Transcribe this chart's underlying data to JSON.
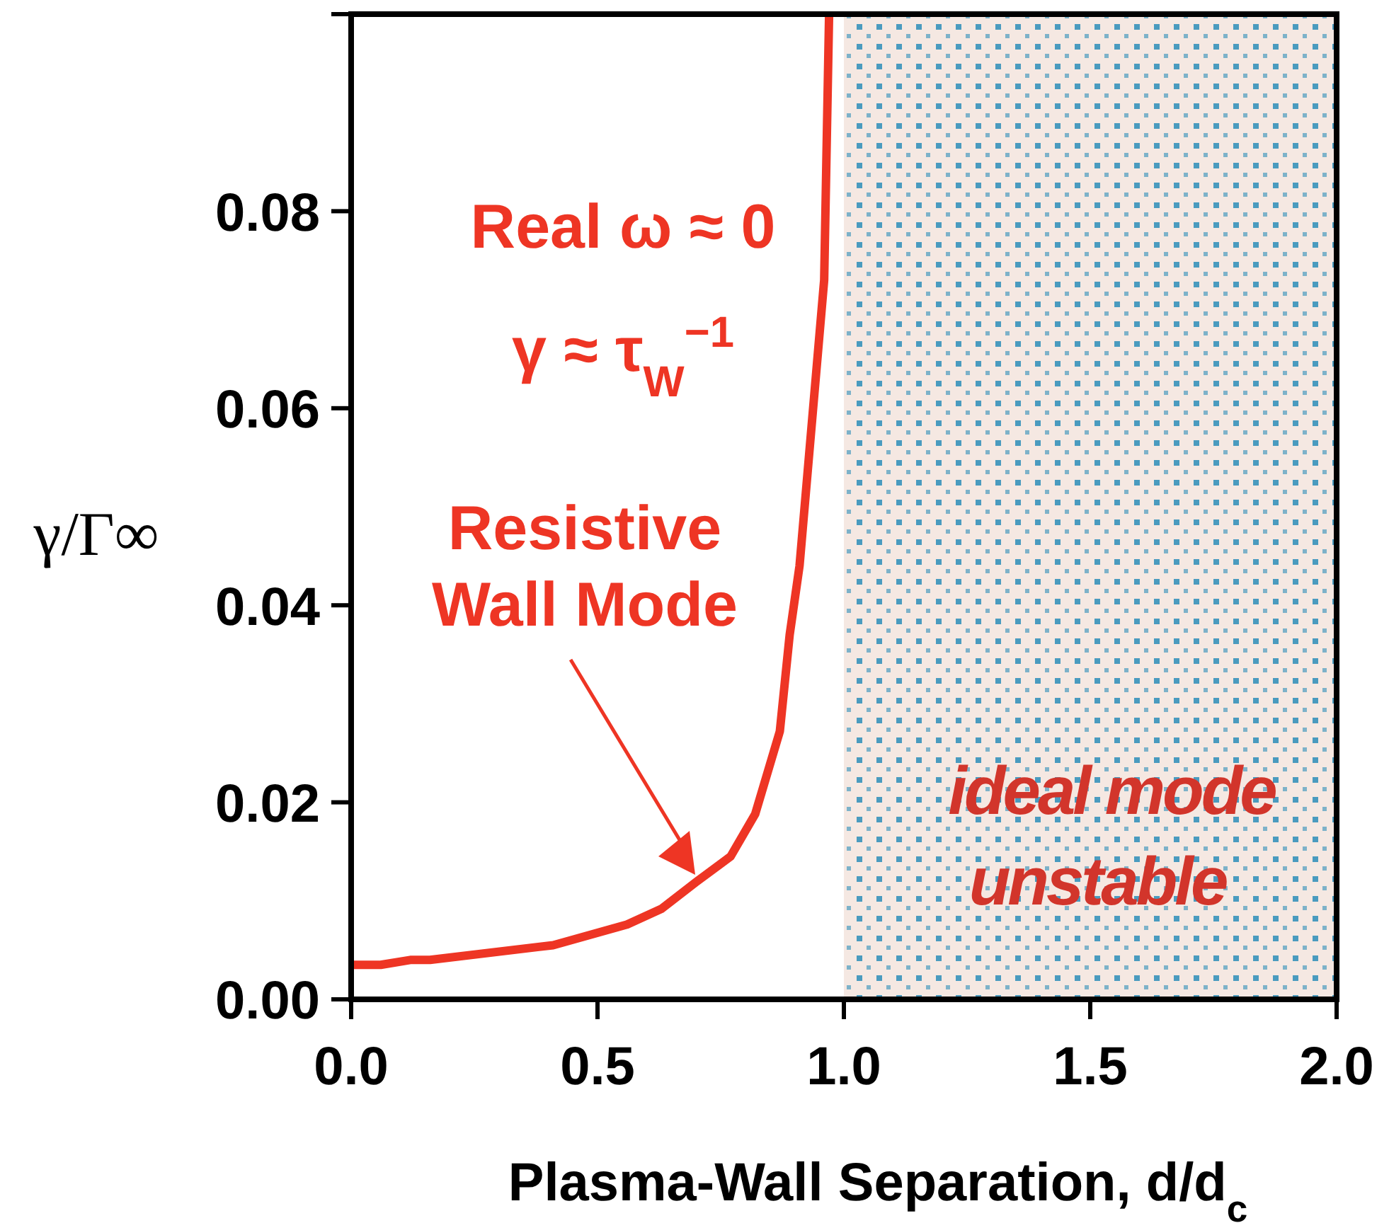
{
  "chart_data": {
    "type": "line",
    "xlabel": "Plasma-Wall Separation, d/d$_{c}$",
    "ylabel": "γ/Γ∞",
    "x": [
      0,
      0.06,
      0.12,
      0.16,
      0.41,
      0.56,
      0.63,
      0.7,
      0.77,
      0.82,
      0.87,
      0.89,
      0.91,
      0.96,
      0.97
    ],
    "series": [
      {
        "color": "#ee3524",
        "values": [
          0.0035,
          0.0035,
          0.004,
          0.004,
          0.0055,
          0.0076,
          0.0092,
          0.0119,
          0.0145,
          0.0188,
          0.0272,
          0.037,
          0.044,
          0.073,
          0.1
        ]
      }
    ],
    "xlim": [
      0,
      2
    ],
    "ylim": [
      0,
      0.1
    ],
    "xticks": [
      {
        "value": 0,
        "label": "0.0"
      },
      {
        "value": 0.5,
        "label": "0.5"
      },
      {
        "value": 1,
        "label": "1.0"
      },
      {
        "value": 1.5,
        "label": "1.5"
      },
      {
        "value": 2,
        "label": "2.0"
      }
    ],
    "yticks": [
      {
        "value": 0,
        "label": "0.00"
      },
      {
        "value": 0.02,
        "label": "0.02"
      },
      {
        "value": 0.04,
        "label": "0.04"
      },
      {
        "value": 0.06,
        "label": "0.06"
      },
      {
        "value": 0.08,
        "label": "0.08"
      },
      {
        "value": 0.1,
        "label": null
      }
    ],
    "bands": [
      {
        "axis": "x",
        "from": 1,
        "to": 2,
        "label": "ideal mode unstable",
        "color": "#f5e8e2"
      }
    ],
    "annotations": [
      "Real ω ≈ 0",
      "γ ≈ τ$_{W}$$^{−1}$",
      "Resistive Wall Mode"
    ],
    "grid": false,
    "marker": "none",
    "line_style": "solid"
  }
}
